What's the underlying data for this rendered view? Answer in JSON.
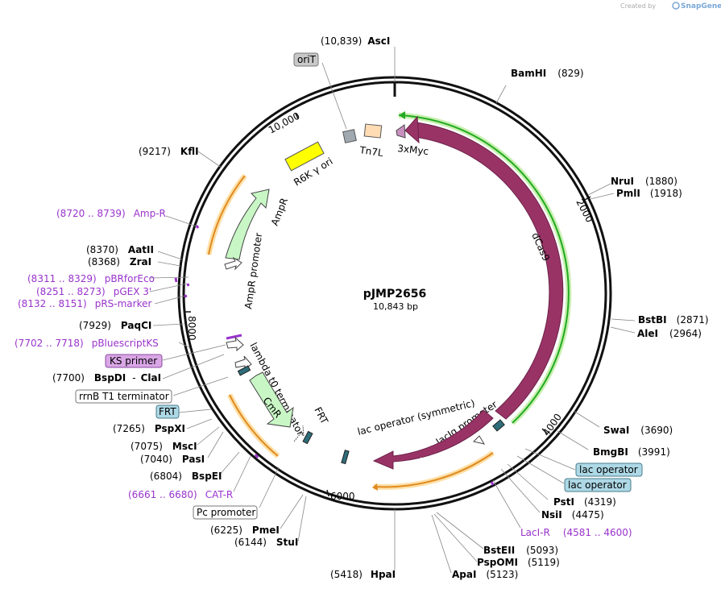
{
  "header": {
    "created_by": "Created by",
    "brand": "SnapGene"
  },
  "plasmid": {
    "name": "pJMP2656",
    "size_label": "10,843 bp",
    "length": 10843
  },
  "colors": {
    "backbone": "#111111",
    "cas9": "#993366",
    "lacI": "#993366",
    "amp": "#c8f7c5",
    "cm": "#c8f7c5",
    "ori": "#ffff00",
    "tn7l": "#ffdcb4",
    "orit": "#a0a8b0",
    "myc": "#c891c0",
    "arrow_track": "#f0a030",
    "green_track": "#22aa22",
    "primer": "#9933cc",
    "boxfill_blue": "#add8e6",
    "boxfill_purple": "#d9a6e6",
    "boxfill_gray": "#c8c8c8"
  },
  "ticks": [
    {
      "bp": 2000,
      "label": "2000"
    },
    {
      "bp": 4000,
      "label": "4000"
    },
    {
      "bp": 6000,
      "label": "6000"
    },
    {
      "bp": 8000,
      "label": "8000"
    },
    {
      "bp": 10000,
      "label": "10,000"
    }
  ],
  "sites": [
    {
      "name": "AscI",
      "pos": "(10,839)"
    },
    {
      "name": "BamHI",
      "pos": "(829)"
    },
    {
      "name": "NruI",
      "pos": "(1880)"
    },
    {
      "name": "PmlI",
      "pos": "(1918)"
    },
    {
      "name": "BstBI",
      "pos": "(2871)"
    },
    {
      "name": "AleI",
      "pos": "(2964)"
    },
    {
      "name": "SwaI",
      "pos": "(3690)"
    },
    {
      "name": "BmgBI",
      "pos": "(3991)"
    },
    {
      "name": "PstI",
      "pos": "(4319)"
    },
    {
      "name": "NsiI",
      "pos": "(4475)"
    },
    {
      "name": "BstEII",
      "pos": "(5093)"
    },
    {
      "name": "PspOMI",
      "pos": "(5119)"
    },
    {
      "name": "ApaI",
      "pos": "(5123)"
    },
    {
      "name": "HpaI",
      "pos": "(5418)"
    },
    {
      "name": "StuI",
      "pos": "(6144)"
    },
    {
      "name": "PmeI",
      "pos": "(6225)"
    },
    {
      "name": "BspEI",
      "pos": "(6804)"
    },
    {
      "name": "PasI",
      "pos": "(7040)"
    },
    {
      "name": "MscI",
      "pos": "(7075)"
    },
    {
      "name": "PspXI",
      "pos": "(7265)"
    },
    {
      "name": "BspDI",
      "sep": "-",
      "name2": "ClaI",
      "pos": "(7700)"
    },
    {
      "name": "PaqCI",
      "pos": "(7929)"
    },
    {
      "name": "ZraI",
      "pos": "(8368)"
    },
    {
      "name": "AatII",
      "pos": "(8370)"
    },
    {
      "name": "KflI",
      "pos": "(9217)"
    }
  ],
  "primers": [
    {
      "name": "Amp-R",
      "range": "(8720 .. 8739)"
    },
    {
      "name": "pBRforEco",
      "range": "(8311 .. 8329)"
    },
    {
      "name": "pGEX 3'",
      "range": "(8251 .. 8273)"
    },
    {
      "name": "pRS-marker",
      "range": "(8132 .. 8151)"
    },
    {
      "name": "pBluescriptKS",
      "range": "(7702 .. 7718)"
    },
    {
      "name": "CAT-R",
      "range": "(6661 .. 6680)"
    },
    {
      "name": "LacI-R",
      "range": "(4581 .. 4600)"
    }
  ],
  "boxed_labels": [
    {
      "text": "oriT"
    },
    {
      "text": "KS primer"
    },
    {
      "text": "rrnB T1 terminator"
    },
    {
      "text": "FRT"
    },
    {
      "text": "lac operator"
    },
    {
      "text": "lac operator"
    },
    {
      "text": "Pc promoter"
    }
  ],
  "features": {
    "tn7l": "Tn7L",
    "myc": "3xMyc",
    "ori": "R6K γ ori",
    "ampr": "AmpR",
    "ampr_promoter": "AmpR promoter",
    "cas9": "dCas9",
    "lambda": "lambda t0 terminator",
    "cmr": "CmR",
    "frt": "FRT",
    "lacop_sym": "lac operator (symmetric)",
    "laciq": "lacIq promoter",
    "laci": "lacI"
  }
}
